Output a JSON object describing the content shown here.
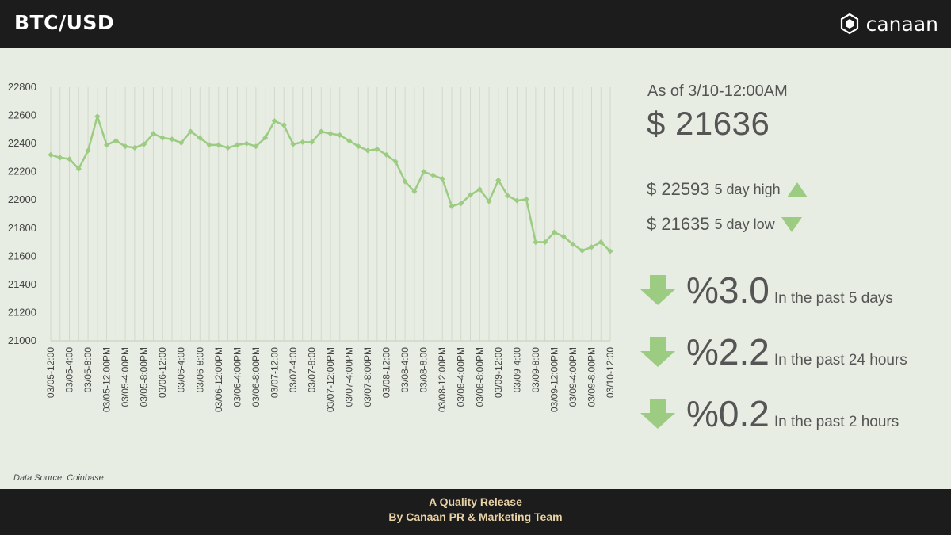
{
  "header": {
    "title": "BTC/USD",
    "brand": "canaan",
    "logo_icon": "canaan-hexagon-icon"
  },
  "summary": {
    "as_of": "As of 3/10-12:00AM",
    "current_price": "$ 21636",
    "high_value": "$ 22593",
    "high_label": "5 day high",
    "low_value": "$ 21635",
    "low_label": "5 day low",
    "changes": [
      {
        "pct": "%3.0",
        "caption": "In the past 5 days",
        "direction": "down"
      },
      {
        "pct": "%2.2",
        "caption": "In the past 24 hours",
        "direction": "down"
      },
      {
        "pct": "%0.2",
        "caption": "In the past 2 hours",
        "direction": "down"
      }
    ],
    "accent_color": "#9ccb82"
  },
  "source": "Data Source: Coinbase",
  "footer": {
    "line1": "A Quality Release",
    "line2": "By Canaan PR & Marketing Team"
  },
  "chart_data": {
    "type": "line",
    "title": "",
    "xlabel": "",
    "ylabel": "",
    "ylim": [
      21000,
      22800
    ],
    "yticks": [
      21000,
      21200,
      21400,
      21600,
      21800,
      22000,
      22200,
      22400,
      22600,
      22800
    ],
    "grid": "vertical",
    "line_color": "#9ccb82",
    "x": [
      "03/05-12:00",
      "03/05-2:00",
      "03/05-4:00",
      "03/05-6:00",
      "03/05-8:00",
      "03/05-10:00",
      "03/05-12:00PM",
      "03/05-2:00PM",
      "03/05-4:00PM",
      "03/05-6:00PM",
      "03/05-8:00PM",
      "03/05-10:00PM",
      "03/06-12:00",
      "03/06-2:00",
      "03/06-4:00",
      "03/06-6:00",
      "03/06-8:00",
      "03/06-10:00",
      "03/06-12:00PM",
      "03/06-2:00PM",
      "03/06-4:00PM",
      "03/06-6:00PM",
      "03/06-8:00PM",
      "03/06-10:00PM",
      "03/07-12:00",
      "03/07-2:00",
      "03/07-4:00",
      "03/07-6:00",
      "03/07-8:00",
      "03/07-10:00",
      "03/07-12:00PM",
      "03/07-2:00PM",
      "03/07-4:00PM",
      "03/07-6:00PM",
      "03/07-8:00PM",
      "03/07-10:00PM",
      "03/08-12:00",
      "03/08-2:00",
      "03/08-4:00",
      "03/08-6:00",
      "03/08-8:00",
      "03/08-10:00",
      "03/08-12:00PM",
      "03/08-2:00PM",
      "03/08-4:00PM",
      "03/08-6:00PM",
      "03/08-8:00PM",
      "03/08-10:00PM",
      "03/09-12:00",
      "03/09-2:00",
      "03/09-4:00",
      "03/09-6:00",
      "03/09-8:00",
      "03/09-10:00",
      "03/09-12:00PM",
      "03/09-2:00PM",
      "03/09-4:00PM",
      "03/09-6:00PM",
      "03/09-8:00PM",
      "03/09-10:00PM",
      "03/10-12:00"
    ],
    "tick_labels": [
      "03/05-12:00",
      "03/05-4:00",
      "03/05-8:00",
      "03/05-12:00PM",
      "03/05-4:00PM",
      "03/05-8:00PM",
      "03/06-12:00",
      "03/06-4:00",
      "03/06-8:00",
      "03/06-12:00PM",
      "03/06-4:00PM",
      "03/06-8:00PM",
      "03/07-12:00",
      "03/07-4:00",
      "03/07-8:00",
      "03/07-12:00PM",
      "03/07-4:00PM",
      "03/07-8:00PM",
      "03/08-12:00",
      "03/08-4:00",
      "03/08-8:00",
      "03/08-12:00PM",
      "03/08-4:00PM",
      "03/08-8:00PM",
      "03/09-12:00",
      "03/09-4:00",
      "03/09-8:00",
      "03/09-12:00PM",
      "03/09-4:00PM",
      "03/09-8:00PM",
      "03/10-12:00"
    ],
    "series": [
      {
        "values": [
          22320,
          22300,
          22290,
          22220,
          22350,
          22593,
          22390,
          22420,
          22380,
          22370,
          22395,
          22470,
          22440,
          22430,
          22405,
          22485,
          22440,
          22390,
          22390,
          22370,
          22390,
          22400,
          22380,
          22440,
          22560,
          22530,
          22395,
          22410,
          22410,
          22485,
          22470,
          22460,
          22420,
          22380,
          22350,
          22360,
          22320,
          22270,
          22130,
          22060,
          22200,
          22175,
          22150,
          21955,
          21975,
          22035,
          22075,
          21990,
          22140,
          22030,
          21995,
          22005,
          21700,
          21700,
          21770,
          21740,
          21685,
          21640,
          21665,
          21700,
          21636
        ]
      }
    ]
  }
}
